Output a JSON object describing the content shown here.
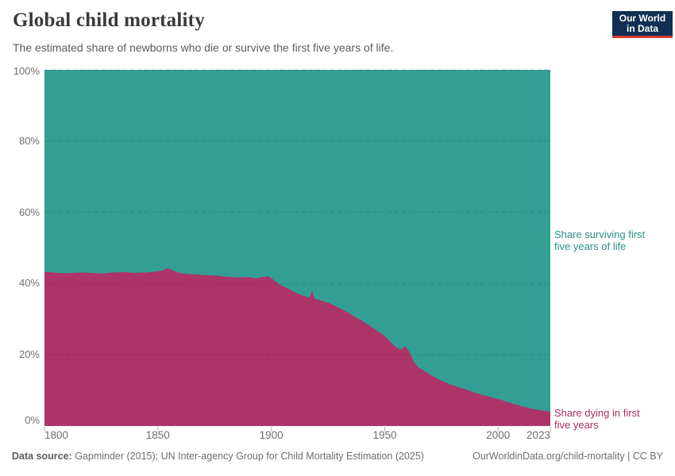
{
  "header": {
    "title": "Global child mortality",
    "subtitle": "The estimated share of newborns who die or survive the first five years of life.",
    "logo": {
      "line1": "Our World",
      "line2": "in Data"
    }
  },
  "footer": {
    "source_label": "Data source:",
    "source_text": " Gapminder (2015); UN Inter-agency Group for Child Mortality Estimation (2025)",
    "attribution": "OurWorldinData.org/child-mortality | CC BY"
  },
  "colors": {
    "surviving_area": "#339e94",
    "dying_area": "#ad3468",
    "surviving_label": "#2b8f87",
    "dying_label": "#a82d61",
    "gridline": "#000000",
    "tick": "#b5b5b5",
    "logo_navy": "#102f52",
    "logo_red": "#d93a32"
  },
  "chart_data": {
    "type": "area",
    "stacked": true,
    "title": "Global child mortality",
    "xlabel": "",
    "ylabel": "",
    "xlim": [
      1800,
      2023
    ],
    "ylim": [
      0,
      100
    ],
    "grid": "dashed-horizontal",
    "legend_position": "right-edge-annotations",
    "x": [
      1800,
      1805,
      1810,
      1815,
      1820,
      1825,
      1830,
      1835,
      1840,
      1845,
      1850,
      1852,
      1854,
      1856,
      1858,
      1860,
      1865,
      1870,
      1875,
      1880,
      1885,
      1890,
      1893,
      1896,
      1899,
      1902,
      1905,
      1908,
      1911,
      1914,
      1916,
      1917,
      1918,
      1919,
      1920,
      1922,
      1925,
      1928,
      1931,
      1934,
      1937,
      1940,
      1943,
      1946,
      1950,
      1953,
      1955,
      1957,
      1959,
      1960,
      1961,
      1963,
      1965,
      1968,
      1970,
      1975,
      1980,
      1985,
      1990,
      1995,
      2000,
      2005,
      2010,
      2015,
      2020,
      2023
    ],
    "series": [
      {
        "name": "Share dying in first five years",
        "color": "#ad3468",
        "values": [
          43.3,
          43.0,
          42.9,
          43.1,
          43.0,
          42.8,
          43.1,
          43.2,
          43.0,
          43.1,
          43.4,
          43.6,
          44.3,
          43.9,
          43.3,
          42.9,
          42.6,
          42.4,
          42.3,
          41.9,
          41.7,
          41.8,
          41.5,
          41.8,
          42.0,
          40.5,
          39.3,
          38.4,
          37.3,
          36.6,
          36.2,
          36.1,
          38.0,
          35.8,
          35.6,
          35.2,
          34.6,
          33.8,
          32.8,
          31.8,
          30.6,
          29.5,
          28.3,
          27.0,
          25.3,
          23.3,
          22.1,
          21.4,
          22.4,
          21.6,
          20.5,
          17.8,
          16.4,
          15.2,
          14.4,
          12.7,
          11.4,
          10.4,
          9.3,
          8.4,
          7.6,
          6.6,
          5.6,
          4.8,
          4.3,
          4.1
        ]
      },
      {
        "name": "Share surviving first five years of life",
        "color": "#339e94",
        "values": [
          56.7,
          57.0,
          57.1,
          56.9,
          57.0,
          57.2,
          56.9,
          56.8,
          57.0,
          56.9,
          56.6,
          56.4,
          55.7,
          56.1,
          56.7,
          57.1,
          57.4,
          57.6,
          57.7,
          58.1,
          58.3,
          58.2,
          58.5,
          58.2,
          58.0,
          59.5,
          60.7,
          61.6,
          62.7,
          63.4,
          63.8,
          63.9,
          62.0,
          64.2,
          64.4,
          64.8,
          65.4,
          66.2,
          67.2,
          68.2,
          69.4,
          70.5,
          71.7,
          73.0,
          74.7,
          76.7,
          77.9,
          78.6,
          77.6,
          78.4,
          79.5,
          82.2,
          83.6,
          84.8,
          85.6,
          87.3,
          88.6,
          89.6,
          90.7,
          91.6,
          92.4,
          93.4,
          94.4,
          95.2,
          95.7,
          95.9
        ]
      }
    ],
    "x_ticks": [
      1800,
      1850,
      1900,
      1950,
      2000,
      2023
    ],
    "y_tick_values": [
      0,
      20,
      40,
      60,
      80,
      100
    ],
    "y_tick_labels": [
      "0%",
      "20%",
      "40%",
      "60%",
      "80%",
      "100%"
    ],
    "annotations": [
      {
        "id": "surviving",
        "lines": [
          "Share surviving first",
          "five years of life"
        ],
        "color": "#2b8f87"
      },
      {
        "id": "dying",
        "lines": [
          "Share dying in first",
          "five years"
        ],
        "color": "#a82d61"
      }
    ]
  }
}
